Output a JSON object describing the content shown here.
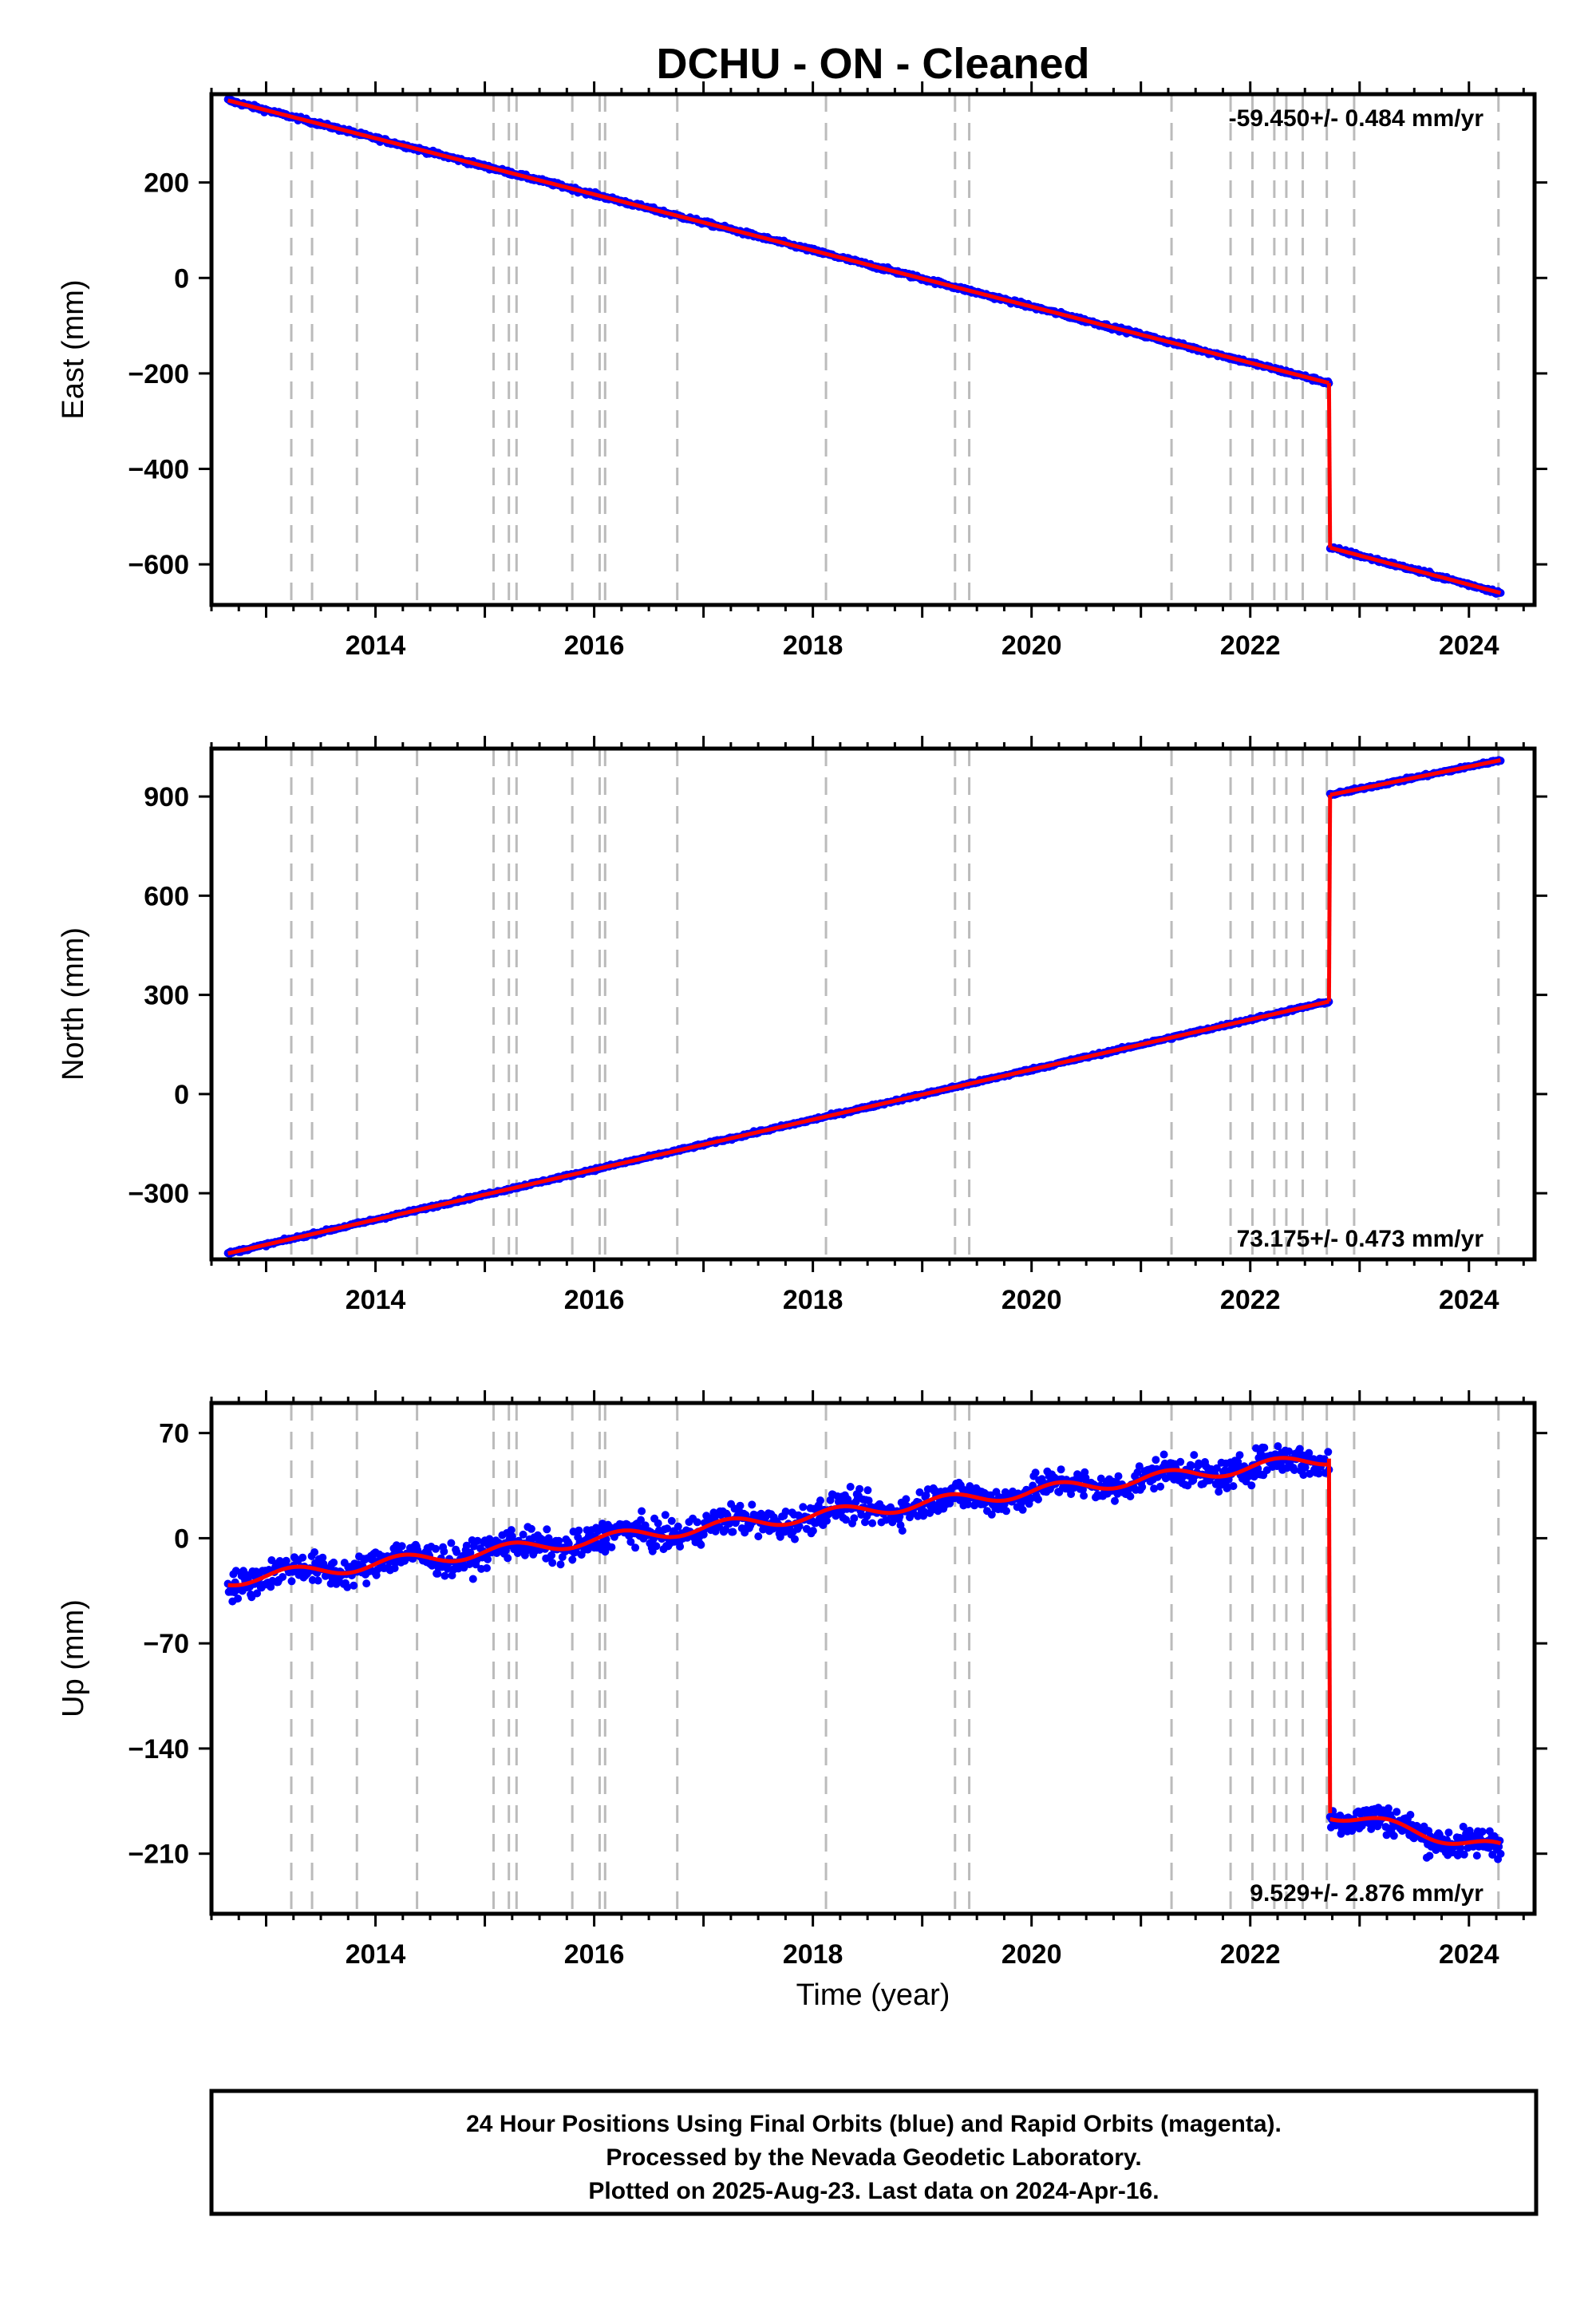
{
  "figure": {
    "title": "DCHU  - ON - Cleaned",
    "footer_lines": [
      "24 Hour Positions Using Final Orbits (blue) and Rapid Orbits (magenta).",
      "Processed by the Nevada Geodetic Laboratory.",
      "Plotted on 2025-Aug-23. Last data on 2024-Apr-16."
    ],
    "xlabel": "Time (year)",
    "point_color": "#0000ff",
    "model_color": "#ff0000",
    "event_line_color": "#bbbbbb"
  },
  "chart_data": [
    {
      "type": "scatter",
      "name": "east",
      "ylabel": "East (mm)",
      "rate_label": "-59.450+/- 0.484 mm/yr",
      "rate_position": "top-right",
      "xlim": [
        2012.5,
        2024.6
      ],
      "ylim": [
        -685,
        385
      ],
      "xticks": [
        2014,
        2016,
        2018,
        2020,
        2022,
        2024
      ],
      "yticks": [
        -600,
        -400,
        -200,
        0,
        200
      ],
      "rate_mm_per_yr": -59.45,
      "noise_mm": 3,
      "segments": [
        {
          "x_start": 2012.65,
          "x_end": 2022.72,
          "y_start": 372,
          "y_end": -220
        },
        {
          "x_start": 2022.73,
          "x_end": 2024.29,
          "y_start": -565,
          "y_end": -660
        }
      ],
      "event_lines_x": [
        2013.23,
        2013.42,
        2013.83,
        2014.38,
        2015.08,
        2015.22,
        2015.29,
        2015.8,
        2016.05,
        2016.1,
        2016.76,
        2018.12,
        2019.3,
        2019.43,
        2021.28,
        2021.82,
        2022.02,
        2022.22,
        2022.33,
        2022.48,
        2022.7,
        2022.95,
        2024.27
      ]
    },
    {
      "type": "scatter",
      "name": "north",
      "ylabel": "North (mm)",
      "rate_label": "73.175+/- 0.473 mm/yr",
      "rate_position": "bottom-right",
      "xlim": [
        2012.5,
        2024.6
      ],
      "ylim": [
        -500,
        1045
      ],
      "xticks": [
        2014,
        2016,
        2018,
        2020,
        2022,
        2024
      ],
      "yticks": [
        -300,
        0,
        300,
        600,
        900
      ],
      "rate_mm_per_yr": 73.175,
      "noise_mm": 3,
      "segments": [
        {
          "x_start": 2012.65,
          "x_end": 2022.72,
          "y_start": -482,
          "y_end": 280
        },
        {
          "x_start": 2022.73,
          "x_end": 2024.29,
          "y_start": 905,
          "y_end": 1010
        }
      ],
      "event_lines_x": [
        2013.23,
        2013.42,
        2013.83,
        2014.38,
        2015.08,
        2015.22,
        2015.29,
        2015.8,
        2016.05,
        2016.1,
        2016.76,
        2018.12,
        2019.3,
        2019.43,
        2021.28,
        2021.82,
        2022.02,
        2022.22,
        2022.33,
        2022.48,
        2022.7,
        2022.95,
        2024.27
      ]
    },
    {
      "type": "scatter",
      "name": "up",
      "ylabel": "Up (mm)",
      "rate_label": "9.529+/- 2.876 mm/yr",
      "rate_position": "bottom-right",
      "xlim": [
        2012.5,
        2024.6
      ],
      "ylim": [
        -250,
        90
      ],
      "xticks": [
        2014,
        2016,
        2018,
        2020,
        2022,
        2024
      ],
      "yticks": [
        -210,
        -140,
        -70,
        0,
        70
      ],
      "rate_mm_per_yr": 9.529,
      "noise_mm": 7,
      "segments": [
        {
          "x_start": 2012.65,
          "x_end": 2022.72,
          "y_start": -28,
          "y_end": 53
        },
        {
          "x_start": 2022.73,
          "x_end": 2024.29,
          "y_start": -183,
          "y_end": -207
        }
      ],
      "event_lines_x": [
        2013.23,
        2013.42,
        2013.83,
        2014.38,
        2015.08,
        2015.22,
        2015.29,
        2015.8,
        2016.05,
        2016.1,
        2016.76,
        2018.12,
        2019.3,
        2019.43,
        2021.28,
        2021.82,
        2022.02,
        2022.22,
        2022.33,
        2022.48,
        2022.7,
        2022.95,
        2024.27
      ]
    }
  ]
}
